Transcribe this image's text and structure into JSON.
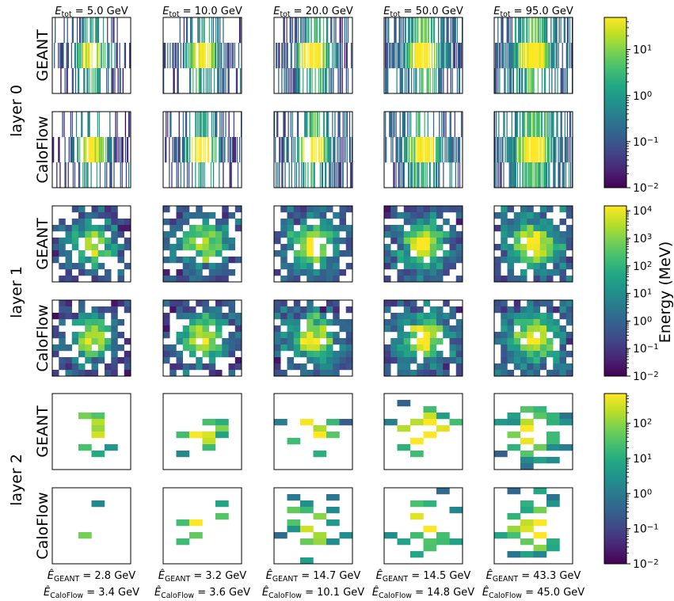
{
  "chart_data": {
    "type": "heatmap",
    "column_headers": [
      {
        "symbol": "E",
        "sub": "tot",
        "value": "= 5.0 GeV"
      },
      {
        "symbol": "E",
        "sub": "tot",
        "value": "= 10.0 GeV"
      },
      {
        "symbol": "E",
        "sub": "tot",
        "value": "= 20.0 GeV"
      },
      {
        "symbol": "E",
        "sub": "tot",
        "value": "= 50.0 GeV"
      },
      {
        "symbol": "E",
        "sub": "tot",
        "value": "= 95.0 GeV"
      }
    ],
    "layer_labels": [
      "layer 0",
      "layer 1",
      "layer 2"
    ],
    "row_labels": [
      "GEANT",
      "CaloFlow",
      "GEANT",
      "CaloFlow",
      "GEANT",
      "CaloFlow"
    ],
    "footer_values": [
      {
        "geant": "= 2.8 GeV",
        "caloflow": "= 3.4 GeV"
      },
      {
        "geant": "= 3.2 GeV",
        "caloflow": "= 3.6 GeV"
      },
      {
        "geant": "= 14.7 GeV",
        "caloflow": "= 10.1 GeV"
      },
      {
        "geant": "= 14.5 GeV",
        "caloflow": "= 14.8 GeV"
      },
      {
        "geant": "= 43.3 GeV",
        "caloflow": "= 45.0 GeV"
      }
    ],
    "footer_symbol": "Ê",
    "footer_sub_geant": "GEANT",
    "footer_sub_caloflow": "CaloFlow",
    "colorbar_label": "Energy (MeV)",
    "colormap": "viridis",
    "colorbars": [
      {
        "layer": 0,
        "scale": "log",
        "range": [
          0.01,
          50
        ],
        "ticks": [
          {
            "base": "10",
            "exp": "1",
            "value": 10
          },
          {
            "base": "10",
            "exp": "0",
            "value": 1
          },
          {
            "base": "10",
            "exp": "−1",
            "value": 0.1
          },
          {
            "base": "10",
            "exp": "−2",
            "value": 0.01
          }
        ]
      },
      {
        "layer": 1,
        "scale": "log",
        "range": [
          0.01,
          15000
        ],
        "ticks": [
          {
            "base": "10",
            "exp": "4",
            "value": 10000
          },
          {
            "base": "10",
            "exp": "3",
            "value": 1000
          },
          {
            "base": "10",
            "exp": "2",
            "value": 100
          },
          {
            "base": "10",
            "exp": "1",
            "value": 10
          },
          {
            "base": "10",
            "exp": "0",
            "value": 1
          },
          {
            "base": "10",
            "exp": "−1",
            "value": 0.1
          },
          {
            "base": "10",
            "exp": "−2",
            "value": 0.01
          }
        ]
      },
      {
        "layer": 2,
        "scale": "log",
        "range": [
          0.01,
          700
        ],
        "ticks": [
          {
            "base": "10",
            "exp": "2",
            "value": 100
          },
          {
            "base": "10",
            "exp": "1",
            "value": 10
          },
          {
            "base": "10",
            "exp": "0",
            "value": 1
          },
          {
            "base": "10",
            "exp": "−1",
            "value": 0.1
          },
          {
            "base": "10",
            "exp": "−2",
            "value": 0.01
          }
        ]
      }
    ],
    "grid": false,
    "colors": {
      "empty_cell": "#ffffff",
      "axes": "#000000"
    },
    "grid_shapes": [
      {
        "layer": 0,
        "rows": 3,
        "cols": 96
      },
      {
        "layer": 1,
        "rows": 12,
        "cols": 12
      },
      {
        "layer": 2,
        "rows": 12,
        "cols": 6
      }
    ],
    "cell_energies_note": ""
  }
}
